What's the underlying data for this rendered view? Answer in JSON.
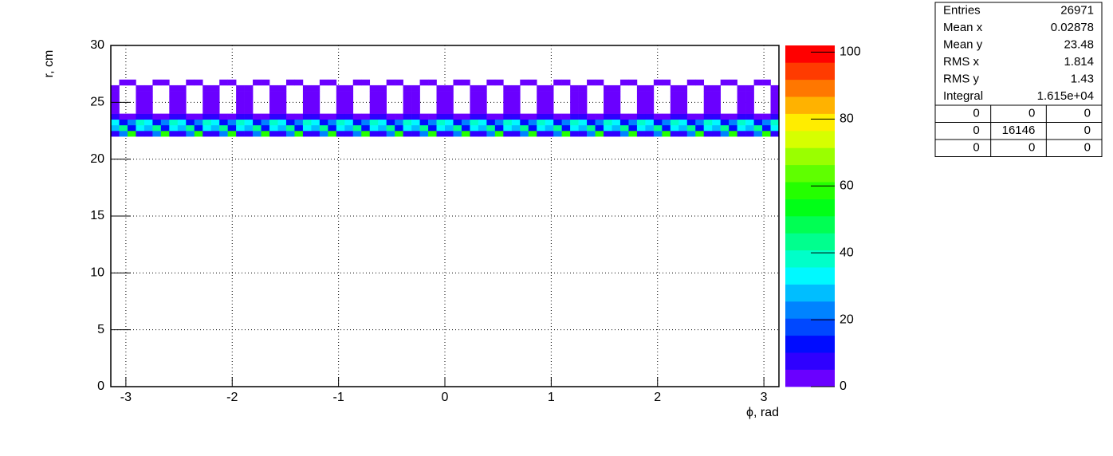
{
  "chart_data": {
    "type": "heatmap",
    "xlabel": "ϕ, rad",
    "ylabel": "r, cm",
    "xlim": [
      -3.1416,
      3.1416
    ],
    "xticks": [
      -3,
      -2,
      -1,
      0,
      1,
      2,
      3
    ],
    "ylim": [
      0,
      30
    ],
    "yticks": [
      0,
      5,
      10,
      15,
      20,
      25,
      30
    ],
    "zlim": [
      0,
      102
    ],
    "zticks": [
      0,
      20,
      40,
      60,
      80,
      100
    ],
    "grid": true,
    "ybins": [
      22,
      22.5,
      23,
      23.5,
      24,
      24.5,
      25,
      25.5,
      26,
      26.5,
      27
    ],
    "z": [
      [
        10,
        25,
        60,
        10,
        10,
        25,
        60,
        10,
        10,
        25,
        60,
        10,
        10,
        25,
        60,
        10,
        10,
        25,
        60,
        10,
        10,
        25,
        60,
        10,
        10,
        25,
        60,
        10,
        10,
        25,
        60,
        10,
        10,
        25,
        60,
        10,
        10,
        25,
        60,
        10,
        10,
        25,
        60,
        10,
        10,
        25,
        60,
        10,
        10,
        25,
        60,
        10,
        10,
        25,
        60,
        10,
        10,
        25,
        60,
        10,
        10,
        25,
        60,
        10,
        10,
        25,
        60,
        10,
        10,
        25,
        60,
        10,
        10,
        25,
        60,
        10,
        10,
        25,
        60,
        10
      ],
      [
        30,
        45,
        15,
        35,
        30,
        45,
        15,
        35,
        30,
        45,
        15,
        35,
        30,
        45,
        15,
        35,
        30,
        45,
        15,
        35,
        30,
        45,
        15,
        35,
        30,
        45,
        15,
        35,
        30,
        45,
        15,
        35,
        30,
        45,
        15,
        35,
        30,
        45,
        15,
        35,
        30,
        45,
        15,
        35,
        30,
        45,
        15,
        35,
        30,
        45,
        15,
        35,
        30,
        45,
        15,
        35,
        30,
        45,
        15,
        35,
        30,
        45,
        15,
        35,
        30,
        45,
        15,
        35,
        30,
        45,
        15,
        35,
        30,
        45,
        15,
        35,
        30,
        45,
        15,
        35
      ],
      [
        35,
        15,
        25,
        40,
        35,
        15,
        25,
        40,
        35,
        15,
        25,
        40,
        35,
        15,
        25,
        40,
        35,
        15,
        25,
        40,
        35,
        15,
        25,
        40,
        35,
        15,
        25,
        40,
        35,
        15,
        25,
        40,
        35,
        15,
        25,
        40,
        35,
        15,
        25,
        40,
        35,
        15,
        25,
        40,
        35,
        15,
        25,
        40,
        35,
        15,
        25,
        40,
        35,
        15,
        25,
        40,
        35,
        15,
        25,
        40,
        35,
        15,
        25,
        40,
        35,
        15,
        25,
        40,
        35,
        15,
        25,
        40,
        35,
        15,
        25,
        40,
        35,
        15,
        25,
        40
      ],
      [
        8,
        3,
        3,
        8,
        8,
        3,
        3,
        8,
        8,
        3,
        3,
        8,
        8,
        3,
        3,
        8,
        8,
        3,
        3,
        8,
        8,
        3,
        3,
        8,
        8,
        3,
        3,
        8,
        8,
        3,
        3,
        8,
        8,
        3,
        3,
        8,
        8,
        3,
        3,
        8,
        8,
        3,
        3,
        8,
        8,
        3,
        3,
        8,
        8,
        3,
        3,
        8,
        8,
        3,
        3,
        8,
        8,
        3,
        3,
        8,
        8,
        3,
        3,
        8,
        8,
        3,
        3,
        8,
        8,
        3,
        3,
        8,
        8,
        3,
        3,
        8,
        8,
        3,
        3,
        8
      ],
      [
        4,
        0,
        0,
        4,
        4,
        0,
        0,
        4,
        4,
        0,
        0,
        4,
        4,
        0,
        0,
        4,
        4,
        0,
        0,
        4,
        4,
        0,
        0,
        4,
        4,
        0,
        0,
        4,
        4,
        0,
        0,
        4,
        4,
        0,
        0,
        4,
        4,
        0,
        0,
        4,
        4,
        0,
        0,
        4,
        4,
        0,
        0,
        4,
        4,
        0,
        0,
        4,
        4,
        0,
        0,
        4,
        4,
        0,
        0,
        4,
        4,
        0,
        0,
        4,
        4,
        0,
        0,
        4,
        4,
        0,
        0,
        4,
        4,
        0,
        0,
        4,
        4,
        0,
        0,
        4
      ],
      [
        4,
        0,
        0,
        4,
        4,
        0,
        0,
        4,
        4,
        0,
        0,
        4,
        4,
        0,
        0,
        4,
        4,
        0,
        0,
        4,
        4,
        0,
        0,
        4,
        4,
        0,
        0,
        4,
        4,
        0,
        0,
        4,
        4,
        0,
        0,
        4,
        4,
        0,
        0,
        4,
        4,
        0,
        0,
        4,
        4,
        0,
        0,
        4,
        4,
        0,
        0,
        4,
        4,
        0,
        0,
        4,
        4,
        0,
        0,
        4,
        4,
        0,
        0,
        4,
        4,
        0,
        0,
        4,
        4,
        0,
        0,
        4,
        4,
        0,
        0,
        4,
        4,
        0,
        0,
        4
      ],
      [
        4,
        0,
        0,
        4,
        4,
        0,
        0,
        4,
        4,
        0,
        0,
        4,
        4,
        0,
        0,
        4,
        4,
        0,
        0,
        4,
        4,
        0,
        0,
        4,
        4,
        0,
        0,
        4,
        4,
        0,
        0,
        4,
        4,
        0,
        0,
        4,
        4,
        0,
        0,
        4,
        4,
        0,
        0,
        4,
        4,
        0,
        0,
        4,
        4,
        0,
        0,
        4,
        4,
        0,
        0,
        4,
        4,
        0,
        0,
        4,
        4,
        0,
        0,
        4,
        4,
        0,
        0,
        4,
        4,
        0,
        0,
        4,
        4,
        0,
        0,
        4,
        4,
        0,
        0,
        4
      ],
      [
        4,
        0,
        0,
        4,
        4,
        0,
        0,
        4,
        4,
        0,
        0,
        4,
        4,
        0,
        0,
        4,
        4,
        0,
        0,
        4,
        4,
        0,
        0,
        4,
        4,
        0,
        0,
        4,
        4,
        0,
        0,
        4,
        4,
        0,
        0,
        4,
        4,
        0,
        0,
        4,
        4,
        0,
        0,
        4,
        4,
        0,
        0,
        4,
        4,
        0,
        0,
        4,
        4,
        0,
        0,
        4,
        4,
        0,
        0,
        4,
        4,
        0,
        0,
        4,
        4,
        0,
        0,
        4,
        4,
        0,
        0,
        4,
        4,
        0,
        0,
        4,
        4,
        0,
        0,
        4
      ],
      [
        4,
        0,
        0,
        4,
        4,
        0,
        0,
        4,
        4,
        0,
        0,
        4,
        4,
        0,
        0,
        4,
        4,
        0,
        0,
        4,
        4,
        0,
        0,
        4,
        4,
        0,
        0,
        4,
        4,
        0,
        0,
        4,
        4,
        0,
        0,
        4,
        4,
        0,
        0,
        4,
        4,
        0,
        0,
        4,
        4,
        0,
        0,
        4,
        4,
        0,
        0,
        4,
        4,
        0,
        0,
        4,
        4,
        0,
        0,
        4,
        4,
        0,
        0,
        4,
        4,
        0,
        0,
        4,
        4,
        0,
        0,
        4,
        4,
        0,
        0,
        4,
        4,
        0,
        0,
        4
      ],
      [
        0,
        4,
        4,
        0,
        0,
        4,
        4,
        0,
        0,
        4,
        4,
        0,
        0,
        4,
        4,
        0,
        0,
        4,
        4,
        0,
        0,
        4,
        4,
        0,
        0,
        4,
        4,
        0,
        0,
        4,
        4,
        0,
        0,
        4,
        4,
        0,
        0,
        4,
        4,
        0,
        0,
        4,
        4,
        0,
        0,
        4,
        4,
        0,
        0,
        4,
        4,
        0,
        0,
        4,
        4,
        0,
        0,
        4,
        4,
        0,
        0,
        4,
        4,
        0,
        0,
        4,
        4,
        0,
        0,
        4,
        4,
        0,
        0,
        4,
        4,
        0,
        0,
        4,
        4,
        0
      ]
    ],
    "stats": [
      [
        "Entries",
        "26971"
      ],
      [
        "Mean x",
        "0.02878"
      ],
      [
        "Mean y",
        "23.48"
      ],
      [
        "RMS x",
        "1.814"
      ],
      [
        "RMS y",
        "1.43"
      ],
      [
        "Integral",
        "1.615e+04"
      ]
    ],
    "stats_table": [
      [
        "0",
        "0",
        "0"
      ],
      [
        "0",
        "16146",
        "0"
      ],
      [
        "0",
        "0",
        "0"
      ]
    ]
  }
}
